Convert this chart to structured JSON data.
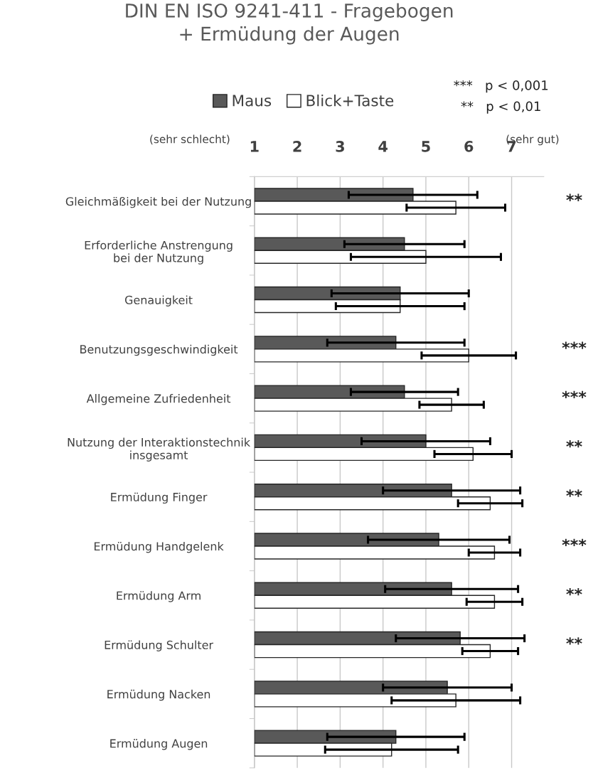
{
  "chart_data": {
    "type": "bar",
    "orientation": "horizontal",
    "title": "DIN EN ISO 9241-411 - Fragebogen\n+ Ermüdung der Augen",
    "categories": [
      "Gleichmäßigkeit bei der Nutzung",
      "Erforderliche Anstrengung\nbei der Nutzung",
      "Genauigkeit",
      "Benutzungsgeschwindigkeit",
      "Allgemeine Zufriedenheit",
      "Nutzung der Interaktionstechnik\ninsgesamt",
      "Ermüdung Finger",
      "Ermüdung Handgelenk",
      "Ermüdung Arm",
      "Ermüdung Schulter",
      "Ermüdung Nacken",
      "Ermüdung Augen"
    ],
    "series": [
      {
        "name": "Maus",
        "color": "#595959",
        "values": [
          4.7,
          4.5,
          4.4,
          4.3,
          4.5,
          5.0,
          5.6,
          5.3,
          5.6,
          5.8,
          5.5,
          4.3
        ],
        "errors": [
          1.5,
          1.4,
          1.6,
          1.6,
          1.25,
          1.5,
          1.6,
          1.65,
          1.55,
          1.5,
          1.5,
          1.6
        ]
      },
      {
        "name": "Blick+Taste",
        "color": "#ffffff",
        "values": [
          5.7,
          5.0,
          4.4,
          6.0,
          5.6,
          6.1,
          6.5,
          6.6,
          6.6,
          6.5,
          5.7,
          4.2
        ],
        "errors": [
          1.15,
          1.75,
          1.5,
          1.1,
          0.75,
          0.9,
          0.75,
          0.6,
          0.65,
          0.65,
          1.5,
          1.55
        ]
      }
    ],
    "xlim": [
      1,
      7.75
    ],
    "xticks": [
      1,
      2,
      3,
      4,
      5,
      6,
      7
    ],
    "grid": "x",
    "legend": "top",
    "annotations": [
      "(sehr schlecht)",
      "(sehr gut)",
      "***   p < 0,001",
      "**   p < 0,01",
      "**",
      "***",
      "***",
      "**",
      "**",
      "***",
      "**",
      "**"
    ]
  }
}
